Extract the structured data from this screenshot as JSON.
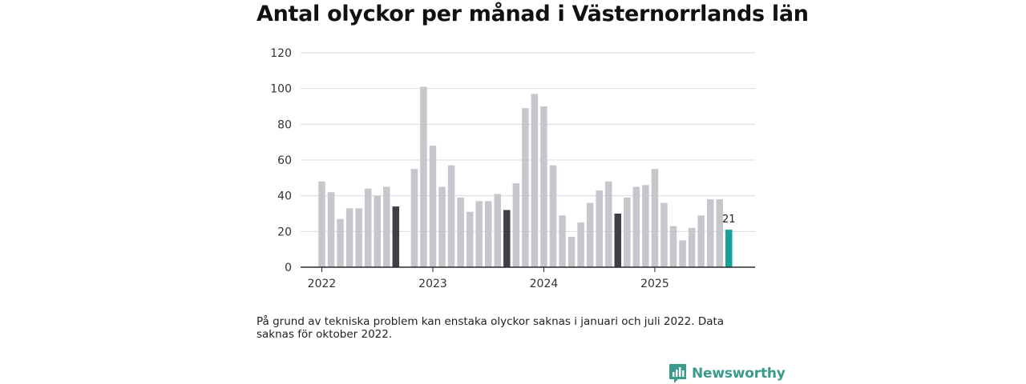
{
  "chart_data": {
    "type": "bar",
    "title": "Antal olyckor per månad i Västernorrlands län",
    "xlabel": "",
    "ylabel": "",
    "ylim": [
      0,
      120
    ],
    "yticks": [
      0,
      20,
      40,
      60,
      80,
      100,
      120
    ],
    "x_tick_labels": [
      "2022",
      "2023",
      "2024",
      "2025"
    ],
    "categories": [
      "2022-01",
      "2022-02",
      "2022-03",
      "2022-04",
      "2022-05",
      "2022-06",
      "2022-07",
      "2022-08",
      "2022-09",
      "2022-10",
      "2022-11",
      "2022-12",
      "2023-01",
      "2023-02",
      "2023-03",
      "2023-04",
      "2023-05",
      "2023-06",
      "2023-07",
      "2023-08",
      "2023-09",
      "2023-10",
      "2023-11",
      "2023-12",
      "2024-01",
      "2024-02",
      "2024-03",
      "2024-04",
      "2024-05",
      "2024-06",
      "2024-07",
      "2024-08",
      "2024-09",
      "2024-10",
      "2024-11",
      "2024-12",
      "2025-01",
      "2025-02",
      "2025-03",
      "2025-04",
      "2025-05",
      "2025-06",
      "2025-07",
      "2025-08",
      "2025-09"
    ],
    "values": [
      48,
      42,
      27,
      33,
      33,
      44,
      40,
      45,
      34,
      null,
      55,
      101,
      68,
      45,
      57,
      39,
      31,
      37,
      37,
      41,
      32,
      47,
      89,
      97,
      90,
      57,
      29,
      17,
      25,
      36,
      43,
      48,
      30,
      39,
      45,
      46,
      55,
      36,
      23,
      15,
      22,
      29,
      38,
      38,
      21
    ],
    "highlighted_months": [
      "2022-09",
      "2023-09",
      "2024-09"
    ],
    "current_month": "2025-09",
    "value_label": "21",
    "colors": {
      "default": "#c6c6cd",
      "highlight": "#3f3f48",
      "current": "#14a396",
      "grid": "#d9d9d9",
      "axis": "#2a2a2a"
    }
  },
  "note": "På grund av tekniska problem kan enstaka olyckor saknas i januari och juli 2022. Data saknas för oktober 2022.",
  "brand": {
    "name": "Newsworthy",
    "icon": "newsworthy-logo-icon",
    "color": "#3a9a8c"
  }
}
